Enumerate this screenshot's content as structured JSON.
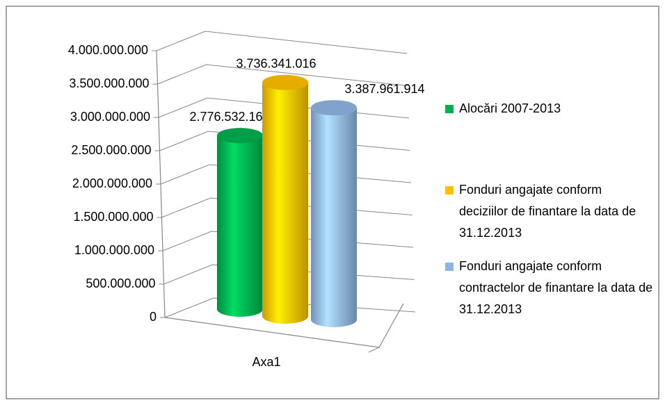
{
  "chart_data": {
    "type": "bar",
    "categories": [
      "Axa1"
    ],
    "series": [
      {
        "name": "Alocări 2007-2013",
        "color": "#00b050",
        "values": [
          2776532160
        ],
        "value_labels": [
          "2.776.532.160"
        ]
      },
      {
        "name": "Fonduri angajate conform deciziilor de finantare la data de 31.12.2013",
        "color": "#ffc000",
        "values": [
          3736341016
        ],
        "value_labels": [
          "3.736.341.016"
        ]
      },
      {
        "name": "Fonduri angajate conform contractelor de finantare la data de 31.12.2013",
        "color": "#8eb4e3",
        "values": [
          3387961914
        ],
        "value_labels": [
          "3.387.961.914"
        ]
      }
    ],
    "ylim": [
      0,
      4000000000
    ],
    "yticks": [
      {
        "value": 0,
        "label": "0"
      },
      {
        "value": 500000000,
        "label": "500.000.000"
      },
      {
        "value": 1000000000,
        "label": "1.000.000.000"
      },
      {
        "value": 1500000000,
        "label": "1.500.000.000"
      },
      {
        "value": 2000000000,
        "label": "2.000.000.000"
      },
      {
        "value": 2500000000,
        "label": "2.500.000.000"
      },
      {
        "value": 3000000000,
        "label": "3.000.000.000"
      },
      {
        "value": 3500000000,
        "label": "3.500.000.000"
      },
      {
        "value": 4000000000,
        "label": "4.000.000.000"
      }
    ],
    "grid": true,
    "legend": "right"
  }
}
